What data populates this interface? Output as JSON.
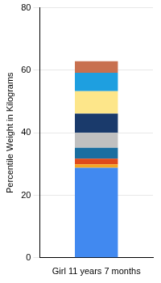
{
  "chart_data": {
    "type": "bar",
    "stacked": true,
    "ylabel": "Percentile Weight in Kilograms",
    "categories": [
      "Girl 11 years 7 months"
    ],
    "series": [
      {
        "color": "#4189f0",
        "values": [
          28.8
        ]
      },
      {
        "color": "#f5a623",
        "values": [
          1.1
        ]
      },
      {
        "color": "#e04a1a",
        "values": [
          1.8
        ]
      },
      {
        "color": "#1a6ea0",
        "values": [
          3.5
        ]
      },
      {
        "color": "#c0c0c0",
        "values": [
          4.8
        ]
      },
      {
        "color": "#1a3a6b",
        "values": [
          6.1
        ]
      },
      {
        "color": "#fde68a",
        "values": [
          7.2
        ]
      },
      {
        "color": "#1e9fe0",
        "values": [
          5.9
        ]
      },
      {
        "color": "#c8704f",
        "values": [
          3.7
        ]
      }
    ],
    "ylim": [
      0,
      80
    ],
    "yticks": [
      0,
      20,
      40,
      60,
      80
    ],
    "grid": true
  }
}
